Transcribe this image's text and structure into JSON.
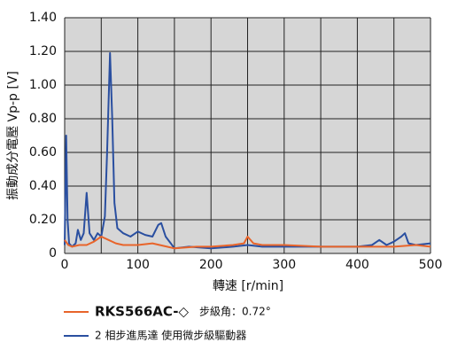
{
  "chart_data": {
    "type": "line",
    "ylabel": "振動成分電壓 Vp-p [V]",
    "xlabel": "轉速 [r/min]",
    "xlim": [
      0,
      500
    ],
    "xticks": [
      0,
      100,
      200,
      300,
      400,
      500
    ],
    "xminor_ticks": [
      50,
      150,
      250,
      350,
      450
    ],
    "ylim": [
      0,
      1.4
    ],
    "yticks": [
      0,
      {
        "value": 0.2,
        "label": "0.20"
      },
      {
        "value": 0.4,
        "label": "0.40"
      },
      {
        "value": 0.6,
        "label": "0.60"
      },
      {
        "value": 0.8,
        "label": "0.80"
      },
      {
        "value": 1.0,
        "label": "1.00"
      },
      {
        "value": 1.2,
        "label": "1.20"
      },
      {
        "value": 1.4,
        "label": "1.40"
      }
    ],
    "grid": true,
    "series": [
      {
        "name": "RKS566AC-◇",
        "note": "步級角：0.72°",
        "color": "#e8642a",
        "x": [
          0,
          5,
          10,
          20,
          30,
          40,
          50,
          60,
          70,
          80,
          100,
          120,
          140,
          150,
          180,
          200,
          230,
          245,
          250,
          258,
          270,
          300,
          350,
          400,
          450,
          480,
          500
        ],
        "values": [
          0.08,
          0.05,
          0.04,
          0.05,
          0.05,
          0.07,
          0.1,
          0.08,
          0.06,
          0.05,
          0.05,
          0.06,
          0.04,
          0.03,
          0.04,
          0.04,
          0.05,
          0.06,
          0.1,
          0.06,
          0.05,
          0.05,
          0.04,
          0.04,
          0.04,
          0.05,
          0.04
        ]
      },
      {
        "name": "2 相步進馬達 使用微步級驅動器",
        "color": "#2a4fa0",
        "x": [
          0,
          2,
          4,
          6,
          10,
          15,
          18,
          22,
          26,
          30,
          34,
          40,
          45,
          50,
          55,
          58,
          62,
          65,
          68,
          72,
          80,
          90,
          100,
          110,
          120,
          128,
          132,
          138,
          145,
          150,
          170,
          200,
          230,
          250,
          270,
          300,
          350,
          400,
          420,
          430,
          440,
          450,
          460,
          465,
          470,
          480,
          500
        ],
        "values": [
          0.05,
          0.7,
          0.2,
          0.06,
          0.04,
          0.06,
          0.14,
          0.08,
          0.12,
          0.36,
          0.12,
          0.08,
          0.12,
          0.1,
          0.22,
          0.6,
          1.19,
          0.8,
          0.3,
          0.15,
          0.12,
          0.1,
          0.13,
          0.11,
          0.1,
          0.17,
          0.18,
          0.1,
          0.06,
          0.03,
          0.04,
          0.03,
          0.04,
          0.05,
          0.04,
          0.04,
          0.04,
          0.04,
          0.05,
          0.08,
          0.05,
          0.07,
          0.1,
          0.12,
          0.06,
          0.05,
          0.06
        ]
      }
    ]
  }
}
